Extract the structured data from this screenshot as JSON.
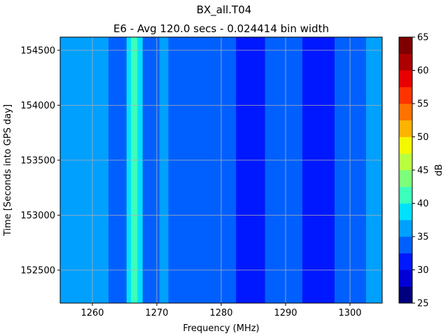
{
  "chart_data": {
    "type": "heatmap",
    "title": "BX_all.T04",
    "subtitle": "E6 - Avg 120.0 secs - 0.024414 bin width",
    "xlabel": "Frequency (MHz)",
    "ylabel": "Time [Seconds into GPS day]",
    "xlim": [
      1255,
      1305
    ],
    "ylim": [
      152200,
      154620
    ],
    "x_ticks": [
      1260,
      1270,
      1280,
      1290,
      1300
    ],
    "y_ticks": [
      152500,
      153000,
      153500,
      154000,
      154500
    ],
    "grid": true,
    "colorbar": {
      "label": "dB",
      "levels": [
        25,
        27.5,
        30,
        32.5,
        35,
        37.5,
        40,
        42.5,
        45,
        47.5,
        50,
        52.5,
        55,
        57.5,
        60,
        62.5,
        65
      ],
      "ticks": [
        25,
        30,
        35,
        40,
        45,
        50,
        55,
        60,
        65
      ],
      "colors": [
        "#00007f",
        "#0000d4",
        "#0018ff",
        "#0060ff",
        "#00a0ff",
        "#00e0ff",
        "#3bffbb",
        "#7dff7a",
        "#b8ff3f",
        "#f4f802",
        "#ffb300",
        "#ff7200",
        "#ff3300",
        "#e80000",
        "#ad0000",
        "#7f0000"
      ]
    },
    "bands": [
      {
        "x": [
          1255.0,
          1262.5
        ],
        "value": 36
      },
      {
        "x": [
          1262.5,
          1265.3
        ],
        "value": 34
      },
      {
        "x": [
          1265.3,
          1266.0
        ],
        "value": 38
      },
      {
        "x": [
          1266.0,
          1267.0
        ],
        "value": 41
      },
      {
        "x": [
          1267.0,
          1267.8
        ],
        "value": 38
      },
      {
        "x": [
          1267.8,
          1270.4
        ],
        "value": 34
      },
      {
        "x": [
          1270.4,
          1271.8
        ],
        "value": 36
      },
      {
        "x": [
          1271.8,
          1282.3
        ],
        "value": 34
      },
      {
        "x": [
          1282.3,
          1286.8
        ],
        "value": 31
      },
      {
        "x": [
          1286.8,
          1292.6
        ],
        "value": 34
      },
      {
        "x": [
          1292.6,
          1297.6
        ],
        "value": 31
      },
      {
        "x": [
          1297.6,
          1302.5
        ],
        "value": 34
      },
      {
        "x": [
          1302.5,
          1305.0
        ],
        "value": 36
      }
    ]
  }
}
